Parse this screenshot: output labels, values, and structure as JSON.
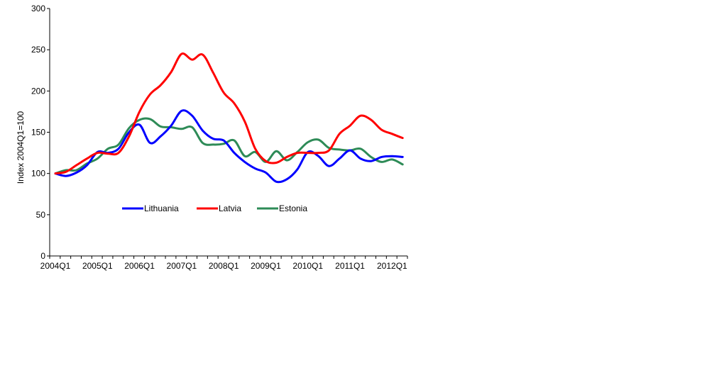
{
  "chart_data": {
    "type": "line",
    "title": "",
    "xlabel": "",
    "ylabel": "Index 2004Q1=100",
    "ylim": [
      0,
      300
    ],
    "yticks": [
      "0",
      "50",
      "100",
      "150",
      "200",
      "250",
      "300"
    ],
    "xticks": [
      "2004Q1",
      "2005Q1",
      "2006Q1",
      "2007Q1",
      "2008Q1",
      "2009Q1",
      "2010Q1",
      "2011Q1",
      "2012Q1"
    ],
    "x": [
      "2004Q1",
      "2004Q2",
      "2004Q3",
      "2004Q4",
      "2005Q1",
      "2005Q2",
      "2005Q3",
      "2005Q4",
      "2006Q1",
      "2006Q2",
      "2006Q3",
      "2006Q4",
      "2007Q1",
      "2007Q2",
      "2007Q3",
      "2007Q4",
      "2008Q1",
      "2008Q2",
      "2008Q3",
      "2008Q4",
      "2009Q1",
      "2009Q2",
      "2009Q3",
      "2009Q4",
      "2010Q1",
      "2010Q2",
      "2010Q3",
      "2010Q4",
      "2011Q1",
      "2011Q2",
      "2011Q3",
      "2011Q4",
      "2012Q1",
      "2012Q2"
    ],
    "grid": false,
    "legend": "center",
    "series": [
      {
        "name": "Lithuania",
        "color": "#0000FF",
        "values": [
          100,
          97,
          101,
          110,
          126,
          125,
          130,
          150,
          159,
          137,
          145,
          158,
          176,
          170,
          152,
          142,
          140,
          125,
          114,
          106,
          101,
          90,
          93,
          105,
          126,
          121,
          109,
          118,
          128,
          118,
          115,
          120,
          121,
          120
        ]
      },
      {
        "name": "Latvia",
        "color": "#FF0000",
        "values": [
          100,
          102,
          110,
          118,
          125,
          124,
          125,
          145,
          175,
          196,
          207,
          223,
          245,
          238,
          244,
          222,
          198,
          185,
          163,
          130,
          115,
          113,
          120,
          125,
          125,
          125,
          128,
          148,
          158,
          170,
          165,
          153,
          148,
          143
        ]
      },
      {
        "name": "Estonia",
        "color": "#2E8B57",
        "values": [
          100,
          104,
          104,
          112,
          118,
          130,
          135,
          155,
          165,
          166,
          157,
          156,
          154,
          156,
          137,
          135,
          136,
          140,
          121,
          126,
          114,
          127,
          116,
          126,
          138,
          141,
          131,
          129,
          128,
          130,
          120,
          114,
          117,
          111
        ]
      }
    ]
  }
}
